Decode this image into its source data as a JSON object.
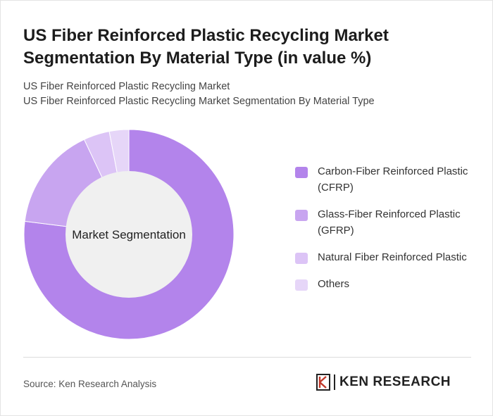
{
  "header": {
    "title": "US Fiber Reinforced Plastic Recycling Market Segmentation By Material Type (in value %)",
    "subtitle_1": "US Fiber Reinforced Plastic Recycling Market",
    "subtitle_2": "US Fiber Reinforced Plastic Recycling Market Segmentation By Material Type"
  },
  "footer": {
    "source": "Source: Ken Research Analysis",
    "brand": "KEN RESEARCH"
  },
  "chart_data": {
    "type": "pie",
    "center_label": "Market Segmentation",
    "categories": [
      "Carbon-Fiber Reinforced Plastic (CFRP)",
      "Glass-Fiber Reinforced Plastic (GFRP)",
      "Natural Fiber Reinforced Plastic",
      "Others"
    ],
    "values": [
      77,
      16,
      4,
      3
    ],
    "colors": [
      "#b384eb",
      "#c8a5f0",
      "#dcc4f6",
      "#e6d6f8"
    ],
    "legend_position": "right"
  }
}
